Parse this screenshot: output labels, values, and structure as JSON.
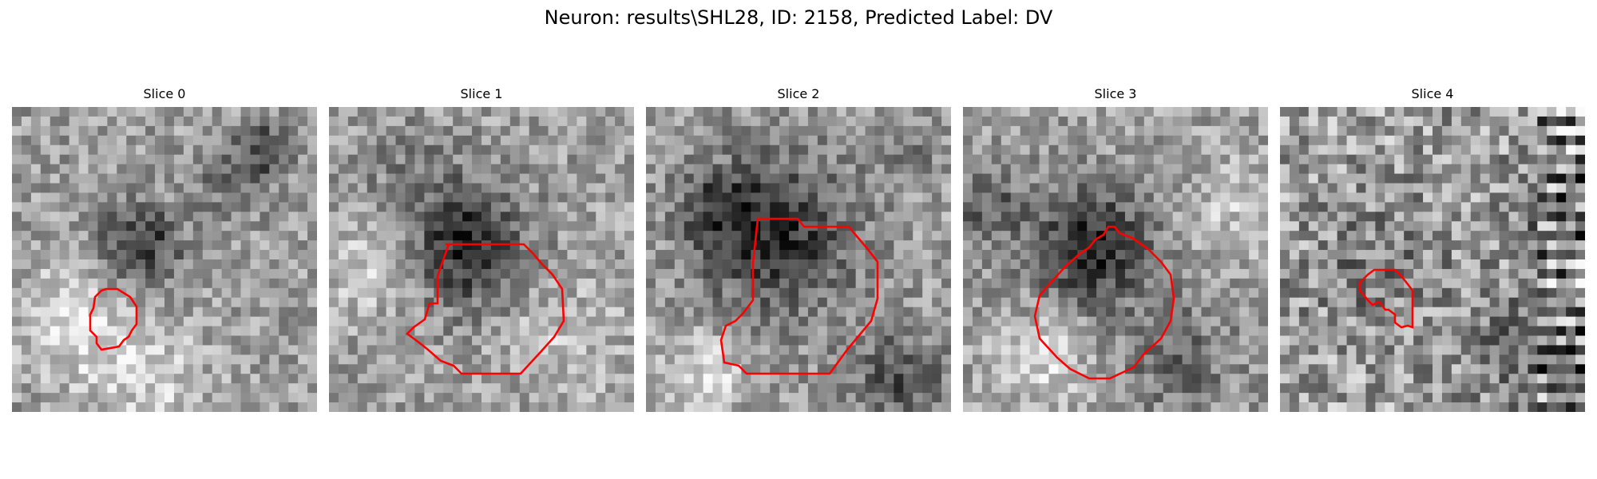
{
  "figure": {
    "title": "Neuron: results\\SHL28, ID: 2158, Predicted Label: DV",
    "contour_color": "#ff0000"
  },
  "panels": [
    {
      "title": "Slice 0"
    },
    {
      "title": "Slice 1"
    },
    {
      "title": "Slice 2"
    },
    {
      "title": "Slice 3"
    },
    {
      "title": "Slice 4"
    }
  ]
}
